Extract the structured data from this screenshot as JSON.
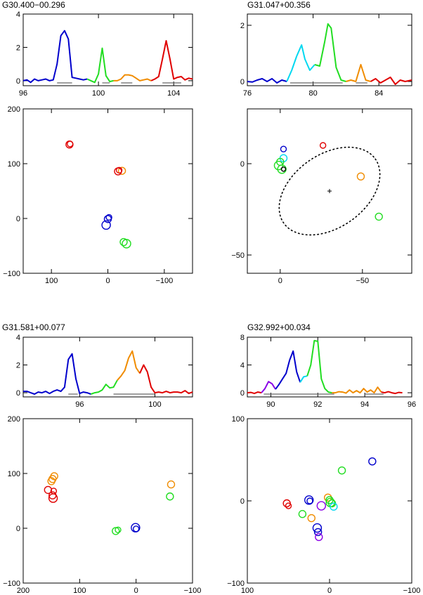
{
  "colors": {
    "blue": "#0000cc",
    "cyan": "#00d8f0",
    "green": "#22dd22",
    "orange": "#f08c00",
    "red": "#e00000",
    "purple": "#8a00e6",
    "black": "#000000",
    "gray": "#888888"
  },
  "chart_data": [
    {
      "type": "line",
      "title": "G30.400−00.296",
      "xlim": [
        96,
        105
      ],
      "ylim": [
        -0.3,
        4
      ],
      "xticks": [
        "96",
        "100",
        "104"
      ],
      "xtick_values": [
        96,
        100,
        104
      ],
      "yticks": [
        "0",
        "2",
        "4"
      ],
      "ytick_values": [
        0,
        2,
        4
      ],
      "series": [
        {
          "color": "blue",
          "x": [
            96,
            96.2,
            96.4,
            96.6,
            96.8,
            97,
            97.2,
            97.4,
            97.6,
            97.8,
            98,
            98.2,
            98.4,
            98.6,
            98.8,
            99,
            99.2,
            99.4
          ],
          "y": [
            0,
            0.05,
            -0.1,
            0.1,
            0,
            0.05,
            0.1,
            0,
            0.05,
            1.0,
            2.7,
            3.0,
            2.5,
            0.2,
            0.15,
            0.1,
            0.05,
            0.1
          ]
        },
        {
          "color": "green",
          "x": [
            99.4,
            99.6,
            99.8,
            100,
            100.2,
            100.4,
            100.6,
            100.8
          ],
          "y": [
            0.1,
            0.0,
            -0.1,
            0.4,
            1.95,
            0.3,
            -0.05,
            0.0
          ]
        },
        {
          "color": "orange",
          "x": [
            100.8,
            101,
            101.2,
            101.4,
            101.6,
            101.8,
            102,
            102.2,
            102.4,
            102.6,
            102.8
          ],
          "y": [
            0.0,
            0.0,
            0.1,
            0.35,
            0.35,
            0.3,
            0.15,
            0.0,
            0.05,
            0.1,
            0.0
          ]
        },
        {
          "color": "red",
          "x": [
            102.8,
            103,
            103.2,
            103.4,
            103.6,
            103.8,
            104,
            104.2,
            104.4,
            104.6,
            104.8,
            105
          ],
          "y": [
            0.0,
            0.1,
            0.25,
            1.3,
            2.4,
            1.3,
            0.1,
            0.2,
            0.25,
            0.05,
            0.15,
            0.1
          ]
        }
      ],
      "ranges": [
        [
          97.8,
          98.6
        ],
        [
          100.2,
          100.6
        ],
        [
          101.2,
          101.8
        ],
        [
          103.4,
          104.4
        ]
      ]
    },
    {
      "type": "scatter",
      "xlim": [
        150,
        -150
      ],
      "ylim": [
        -100,
        200
      ],
      "xticks": [
        "100",
        "0",
        "−100"
      ],
      "xtick_values": [
        100,
        0,
        -100
      ],
      "yticks": [
        "−100",
        "0",
        "100",
        "200"
      ],
      "ytick_values": [
        -100,
        0,
        100,
        200
      ],
      "points": [
        {
          "x": 68,
          "y": 135,
          "r": 5,
          "color": "red"
        },
        {
          "x": 67,
          "y": 136,
          "r": 4,
          "color": "red"
        },
        {
          "x": -25,
          "y": 87,
          "r": 5,
          "color": "orange"
        },
        {
          "x": -18,
          "y": 86,
          "r": 5,
          "color": "red"
        },
        {
          "x": -20,
          "y": 88,
          "r": 4,
          "color": "red"
        },
        {
          "x": 0,
          "y": -1,
          "r": 5,
          "color": "blue"
        },
        {
          "x": 3,
          "y": -12,
          "r": 6,
          "color": "blue"
        },
        {
          "x": -2,
          "y": 2,
          "r": 4,
          "color": "blue"
        },
        {
          "x": -28,
          "y": -43,
          "r": 5,
          "color": "green"
        },
        {
          "x": -33,
          "y": -46,
          "r": 6,
          "color": "green"
        }
      ]
    },
    {
      "type": "line",
      "title": "G31.047+00.356",
      "xlim": [
        76,
        86
      ],
      "ylim": [
        -0.15,
        2.4
      ],
      "xticks": [
        "76",
        "80",
        "84"
      ],
      "xtick_values": [
        76,
        80,
        84
      ],
      "yticks": [
        "0",
        "2"
      ],
      "ytick_values": [
        0,
        2
      ],
      "series": [
        {
          "color": "blue",
          "x": [
            76,
            76.3,
            76.6,
            76.9,
            77.2,
            77.5,
            77.8,
            78.1,
            78.4
          ],
          "y": [
            0,
            -0.02,
            0.05,
            0.1,
            0,
            0.1,
            -0.05,
            0.05,
            0.0
          ]
        },
        {
          "color": "cyan",
          "x": [
            78.4,
            78.7,
            79,
            79.3,
            79.5,
            79.8,
            80.1
          ],
          "y": [
            0.0,
            0.4,
            0.9,
            1.3,
            0.8,
            0.4,
            0.6
          ]
        },
        {
          "color": "green",
          "x": [
            80.1,
            80.4,
            80.7,
            80.9,
            81.1,
            81.4,
            81.7,
            82
          ],
          "y": [
            0.6,
            0.55,
            1.4,
            2.05,
            1.9,
            0.5,
            0.05,
            0.0
          ]
        },
        {
          "color": "orange",
          "x": [
            82,
            82.3,
            82.6,
            82.9,
            83.2,
            83.5
          ],
          "y": [
            0.0,
            0.05,
            0.0,
            0.6,
            0.05,
            0.0
          ]
        },
        {
          "color": "red",
          "x": [
            83.5,
            83.8,
            84.1,
            84.4,
            84.7,
            85,
            85.3,
            85.6,
            86
          ],
          "y": [
            0.0,
            0.1,
            -0.05,
            0.05,
            0.15,
            -0.1,
            0.05,
            0.0,
            0.05
          ]
        }
      ],
      "ranges": [
        [
          78.6,
          81.8
        ],
        [
          82.6,
          83.3
        ]
      ]
    },
    {
      "type": "scatter",
      "xlim": [
        20,
        -80
      ],
      "ylim": [
        -60,
        30
      ],
      "xticks": [
        "0",
        "−50"
      ],
      "xtick_values": [
        0,
        -50
      ],
      "yticks": [
        "−50",
        "0"
      ],
      "ytick_values": [
        -50,
        0
      ],
      "ellipse": {
        "cx": -30,
        "cy": -15,
        "rx": 34,
        "ry": 20,
        "angle_deg": -35
      },
      "center_marker": {
        "x": -30,
        "y": -15
      },
      "points": [
        {
          "x": -2,
          "y": 8,
          "r": 4,
          "color": "blue"
        },
        {
          "x": -2,
          "y": 3,
          "r": 5,
          "color": "cyan"
        },
        {
          "x": 0,
          "y": 1,
          "r": 5,
          "color": "green"
        },
        {
          "x": 1,
          "y": -1,
          "r": 6,
          "color": "green"
        },
        {
          "x": -1,
          "y": -3,
          "r": 6,
          "color": "green"
        },
        {
          "x": -2,
          "y": -3,
          "r": 3,
          "color": "black"
        },
        {
          "x": -26,
          "y": 10,
          "r": 4,
          "color": "red"
        },
        {
          "x": -49,
          "y": -7,
          "r": 5,
          "color": "orange"
        },
        {
          "x": -60,
          "y": -29,
          "r": 5,
          "color": "green"
        }
      ]
    },
    {
      "type": "line",
      "title": "G31.581+00.077",
      "xlim": [
        93,
        102
      ],
      "ylim": [
        -0.3,
        4
      ],
      "xticks": [
        "96",
        "100"
      ],
      "xtick_values": [
        96,
        100
      ],
      "yticks": [
        "0",
        "2",
        "4"
      ],
      "ytick_values": [
        0,
        2,
        4
      ],
      "series": [
        {
          "color": "blue",
          "x": [
            93,
            93.2,
            93.4,
            93.6,
            93.8,
            94,
            94.2,
            94.4,
            94.6,
            94.8,
            95,
            95.2,
            95.4,
            95.6,
            95.8,
            96,
            96.2,
            96.4,
            96.6
          ],
          "y": [
            0.1,
            0.1,
            0.0,
            -0.1,
            0.05,
            0.0,
            0.1,
            -0.05,
            0.1,
            0.2,
            0.1,
            0.4,
            2.4,
            2.8,
            1.0,
            -0.05,
            0.05,
            0.0,
            -0.1
          ]
        },
        {
          "color": "green",
          "x": [
            96.6,
            96.8,
            97,
            97.2,
            97.4,
            97.6,
            97.8,
            98
          ],
          "y": [
            -0.1,
            0.0,
            0.05,
            0.2,
            0.6,
            0.35,
            0.4,
            0.9
          ]
        },
        {
          "color": "orange",
          "x": [
            98,
            98.2,
            98.4,
            98.6,
            98.8,
            99,
            99.2
          ],
          "y": [
            0.9,
            1.2,
            1.6,
            2.5,
            3.0,
            1.8,
            1.4
          ]
        },
        {
          "color": "red",
          "x": [
            99.2,
            99.4,
            99.6,
            99.8,
            100,
            100.2,
            100.4,
            100.6,
            100.8,
            101,
            101.2,
            101.4,
            101.6,
            101.8,
            102
          ],
          "y": [
            1.4,
            2.0,
            1.5,
            0.4,
            0.0,
            0.05,
            0.0,
            0.1,
            0.0,
            0.05,
            0.05,
            0.0,
            0.15,
            -0.05,
            0.05
          ]
        }
      ],
      "ranges": [
        [
          95.4,
          95.9
        ],
        [
          97.8,
          100.0
        ]
      ]
    },
    {
      "type": "scatter",
      "xlim": [
        200,
        -100
      ],
      "ylim": [
        -100,
        200
      ],
      "xticks": [
        "200",
        "100",
        "0",
        "−100"
      ],
      "xtick_values": [
        200,
        100,
        0,
        -100
      ],
      "yticks": [
        "−100",
        "0",
        "100",
        "200"
      ],
      "ytick_values": [
        -100,
        0,
        100,
        200
      ],
      "points": [
        {
          "x": 145,
          "y": 95,
          "r": 5,
          "color": "orange"
        },
        {
          "x": 148,
          "y": 90,
          "r": 5,
          "color": "orange"
        },
        {
          "x": 150,
          "y": 86,
          "r": 5,
          "color": "orange"
        },
        {
          "x": 156,
          "y": 70,
          "r": 5,
          "color": "red"
        },
        {
          "x": 146,
          "y": 68,
          "r": 4,
          "color": "red"
        },
        {
          "x": 148,
          "y": 60,
          "r": 5,
          "color": "red"
        },
        {
          "x": 147,
          "y": 55,
          "r": 6,
          "color": "red"
        },
        {
          "x": -62,
          "y": 80,
          "r": 5,
          "color": "orange"
        },
        {
          "x": -60,
          "y": 58,
          "r": 5,
          "color": "green"
        },
        {
          "x": 36,
          "y": -5,
          "r": 5,
          "color": "green"
        },
        {
          "x": 32,
          "y": -3,
          "r": 4,
          "color": "green"
        },
        {
          "x": 1,
          "y": 1,
          "r": 6,
          "color": "blue"
        },
        {
          "x": 0,
          "y": -1,
          "r": 4,
          "color": "blue"
        }
      ]
    },
    {
      "type": "line",
      "title": "G32.992+00.034",
      "xlim": [
        89,
        96
      ],
      "ylim": [
        -0.6,
        8
      ],
      "xticks": [
        "90",
        "92",
        "94",
        "96"
      ],
      "xtick_values": [
        90,
        92,
        94,
        96
      ],
      "yticks": [
        "0",
        "4",
        "8"
      ],
      "ytick_values": [
        0,
        4,
        8
      ],
      "series": [
        {
          "color": "red",
          "x": [
            89,
            89.15,
            89.3,
            89.45,
            89.6
          ],
          "y": [
            0.0,
            0.05,
            -0.1,
            0.1,
            0.0
          ]
        },
        {
          "color": "purple",
          "x": [
            89.6,
            89.75,
            89.9,
            90.05,
            90.2
          ],
          "y": [
            0.0,
            0.6,
            1.6,
            1.3,
            0.5
          ]
        },
        {
          "color": "blue",
          "x": [
            90.2,
            90.35,
            90.5,
            90.65,
            90.8,
            90.95,
            91.1,
            91.25
          ],
          "y": [
            0.5,
            1.2,
            2.0,
            2.8,
            4.7,
            6.0,
            3.0,
            1.5
          ]
        },
        {
          "color": "cyan",
          "x": [
            91.25,
            91.4,
            91.55
          ],
          "y": [
            1.5,
            2.3,
            2.4
          ]
        },
        {
          "color": "green",
          "x": [
            91.55,
            91.7,
            91.85,
            92.0,
            92.15,
            92.3,
            92.45,
            92.6
          ],
          "y": [
            2.4,
            4.0,
            7.5,
            7.4,
            2.0,
            0.6,
            0.1,
            0.0
          ]
        },
        {
          "color": "orange",
          "x": [
            92.6,
            92.75,
            92.9,
            93.05,
            93.2,
            93.35,
            93.5,
            93.65,
            93.8,
            93.95,
            94.1,
            94.25,
            94.4,
            94.55,
            94.7
          ],
          "y": [
            0.0,
            0.0,
            0.15,
            0.1,
            -0.05,
            0.4,
            0.0,
            0.3,
            0.0,
            0.6,
            0.1,
            0.4,
            0.0,
            0.8,
            0.1
          ]
        },
        {
          "color": "red",
          "x": [
            94.7,
            94.85,
            95.0,
            95.15,
            95.3,
            95.45,
            95.6
          ],
          "y": [
            0.1,
            0.0,
            0.15,
            0.0,
            -0.1,
            0.05,
            0.0
          ]
        }
      ],
      "ranges": [
        [
          89.7,
          92.7
        ],
        [
          94.0,
          94.8
        ]
      ]
    },
    {
      "type": "scatter",
      "xlim": [
        100,
        -100
      ],
      "ylim": [
        -100,
        100
      ],
      "xticks": [
        "100",
        "0",
        "−100"
      ],
      "xtick_values": [
        100,
        0,
        -100
      ],
      "yticks": [
        "−100",
        "0",
        "100"
      ],
      "ytick_values": [
        -100,
        0,
        100
      ],
      "points": [
        {
          "x": -52,
          "y": 48,
          "r": 5,
          "color": "blue"
        },
        {
          "x": -15,
          "y": 37,
          "r": 5,
          "color": "green"
        },
        {
          "x": 52,
          "y": -3,
          "r": 5,
          "color": "red"
        },
        {
          "x": 50,
          "y": -6,
          "r": 4,
          "color": "red"
        },
        {
          "x": 25,
          "y": 1,
          "r": 6,
          "color": "blue"
        },
        {
          "x": 24,
          "y": 0,
          "r": 4,
          "color": "blue"
        },
        {
          "x": 33,
          "y": -16,
          "r": 5,
          "color": "green"
        },
        {
          "x": 22,
          "y": -21,
          "r": 5,
          "color": "orange"
        },
        {
          "x": 15,
          "y": -33,
          "r": 6,
          "color": "blue"
        },
        {
          "x": 14,
          "y": -38,
          "r": 5,
          "color": "blue"
        },
        {
          "x": 13,
          "y": -44,
          "r": 5,
          "color": "purple"
        },
        {
          "x": 10,
          "y": -6,
          "r": 6,
          "color": "purple"
        },
        {
          "x": 2,
          "y": 4,
          "r": 5,
          "color": "orange"
        },
        {
          "x": 0,
          "y": 1,
          "r": 5,
          "color": "green"
        },
        {
          "x": -1,
          "y": -2,
          "r": 6,
          "color": "green"
        },
        {
          "x": -3,
          "y": -3,
          "r": 5,
          "color": "green"
        },
        {
          "x": -5,
          "y": -7,
          "r": 5,
          "color": "cyan"
        }
      ]
    }
  ]
}
